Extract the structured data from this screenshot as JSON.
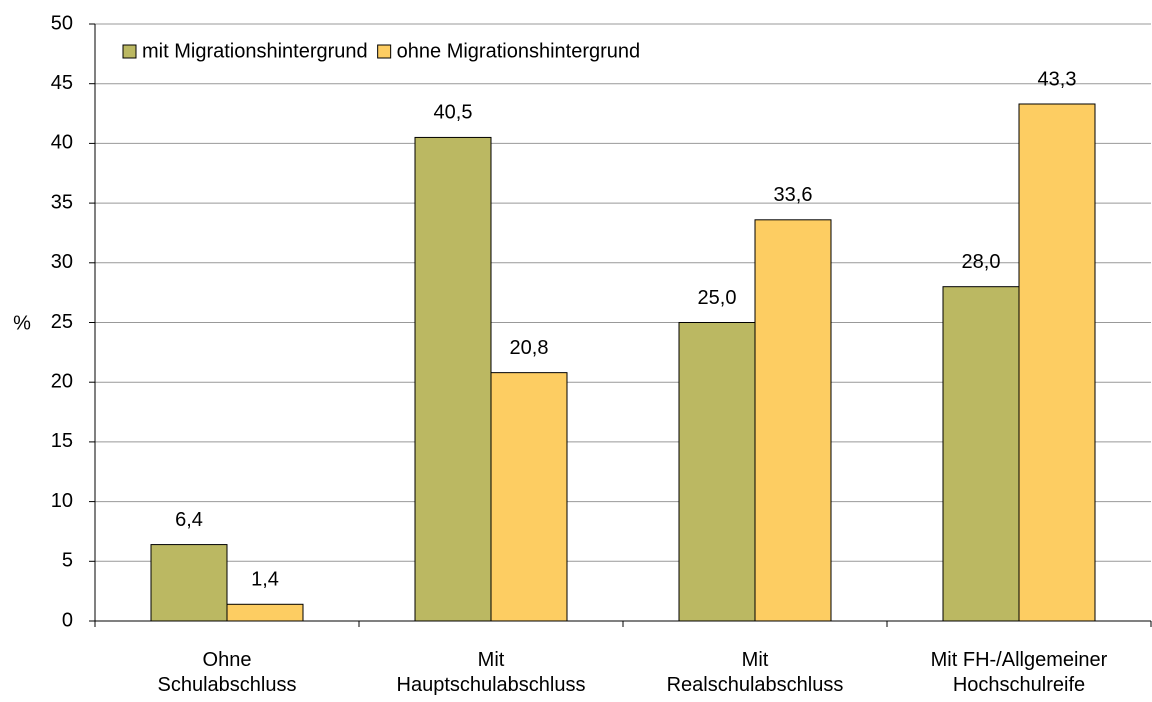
{
  "chart_data": {
    "type": "bar",
    "y_label": "%",
    "categories": [
      "Ohne\nSchulabschluss",
      "Mit\nHauptschulabschluss",
      "Mit\nRealschulabschluss",
      "Mit FH-/Allgemeiner\nHochschulreife"
    ],
    "series": [
      {
        "name": "mit Migrationshintergrund",
        "color": "#bbb862",
        "values": [
          6.4,
          40.5,
          25.0,
          28.0
        ],
        "value_labels": [
          "6,4",
          "40,5",
          "25,0",
          "28,0"
        ]
      },
      {
        "name": "ohne Migrationshintergrund",
        "color": "#fdcd62",
        "values": [
          1.4,
          20.8,
          33.6,
          43.3
        ],
        "value_labels": [
          "1,4",
          "20,8",
          "33,6",
          "43,3"
        ]
      }
    ],
    "ylim": [
      0,
      50
    ],
    "yticks": [
      0,
      5,
      10,
      15,
      20,
      25,
      30,
      35,
      40,
      45,
      50
    ],
    "grid": true,
    "legend": "top-left"
  }
}
